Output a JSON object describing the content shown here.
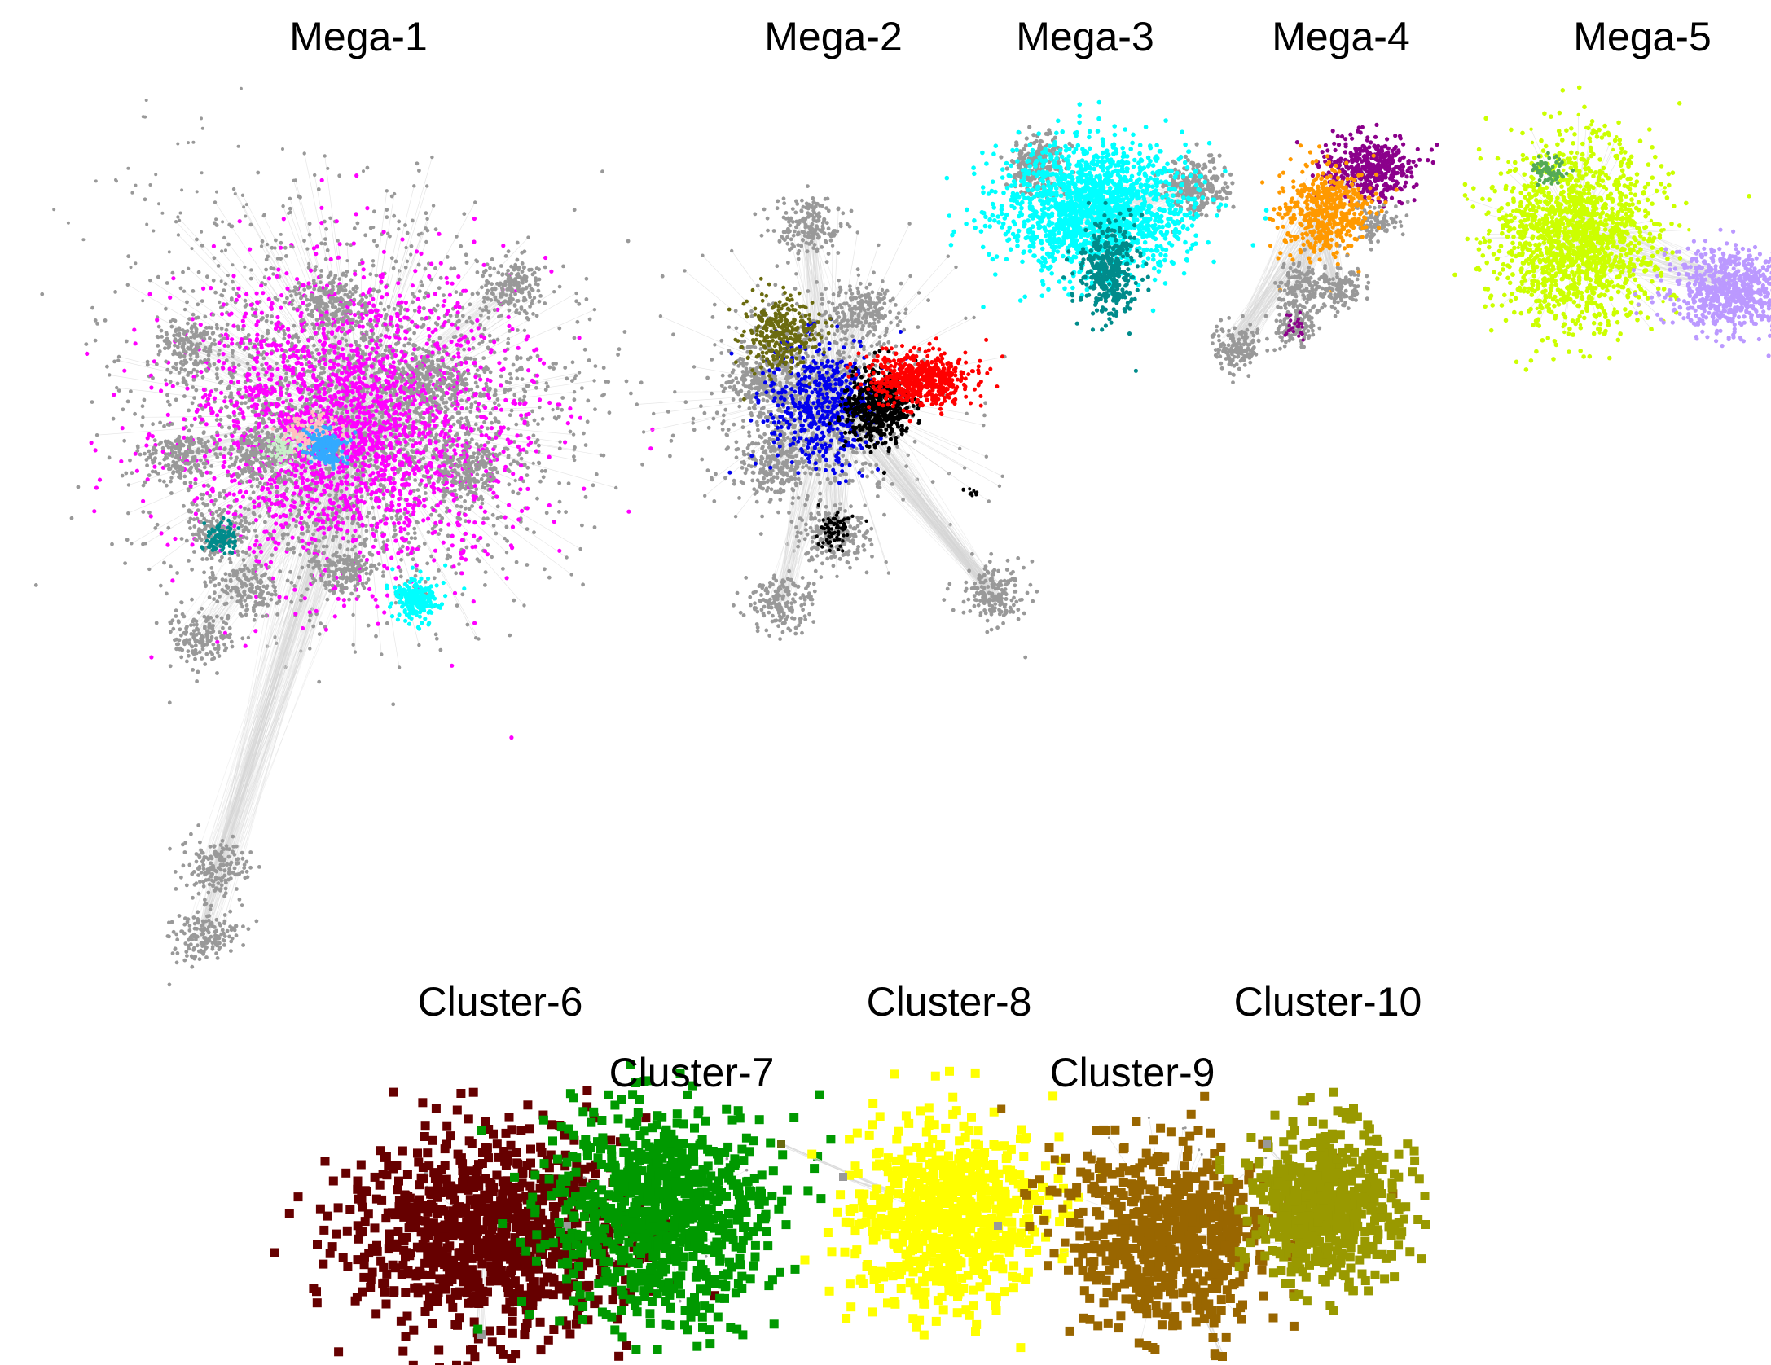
{
  "labels": {
    "mega_1": "Mega-1",
    "mega_2": "Mega-2",
    "mega_3": "Mega-3",
    "mega_4": "Mega-4",
    "mega_5": "Mega-5",
    "cluster_6": "Cluster-6",
    "cluster_7": "Cluster-7",
    "cluster_8": "Cluster-8",
    "cluster_9": "Cluster-9",
    "cluster_10": "Cluster-10"
  },
  "colors": {
    "background": "#ffffff",
    "edge": "#d6d6d6",
    "gray_node": "#999999",
    "magenta": "#ff00ff",
    "cyan": "#00ffff",
    "sky_blue": "#33aaff",
    "pink": "#ffc0c0",
    "light_green": "#c8f0c8",
    "olive_dark": "#6b6b10",
    "blue": "#0000ee",
    "black": "#000000",
    "red": "#ff0000",
    "teal": "#008b8b",
    "orange": "#ff9900",
    "purple": "#8b008b",
    "lime": "#ccff00",
    "green_small": "#55aa55",
    "lavender": "#bb99ff",
    "maroon": "#660000",
    "green": "#009900",
    "yellow": "#ffff00",
    "brown": "#996600",
    "olive": "#999900"
  }
}
